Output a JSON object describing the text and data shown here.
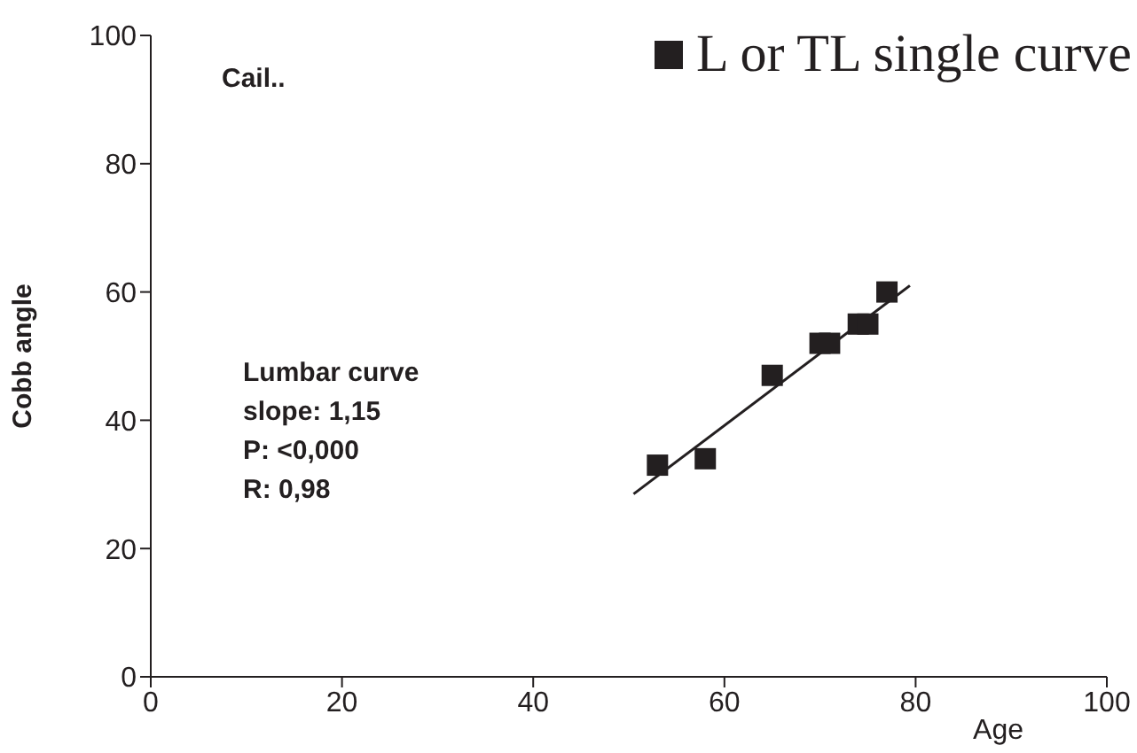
{
  "chart_data": {
    "type": "scatter",
    "xlabel": "Age",
    "ylabel": "Cobb angle",
    "annotations": [
      "Cail..",
      "Lumbar curve",
      "slope: 1,15",
      "P: <0,000",
      "R: 0,98"
    ],
    "series": [
      {
        "name": "L or TL single curve",
        "marker": "square",
        "color": "#231f20",
        "x": [
          53,
          58,
          65,
          70,
          71,
          74,
          75,
          77
        ],
        "values": [
          33,
          34,
          47,
          52,
          52,
          55,
          55,
          60
        ]
      },
      {
        "type": "line",
        "marker": "none",
        "color": "#231f20",
        "x": [
          50.5,
          79.4
        ],
        "values": [
          28.5,
          61
        ]
      }
    ],
    "xlim": [
      0,
      100
    ],
    "xticks": [
      0,
      20,
      40,
      60,
      80,
      100
    ],
    "ylim": [
      0,
      100
    ],
    "yticks": [
      0,
      20,
      40,
      60,
      80,
      100
    ],
    "grid": false,
    "legend": "top right",
    "line_style": "solid"
  }
}
